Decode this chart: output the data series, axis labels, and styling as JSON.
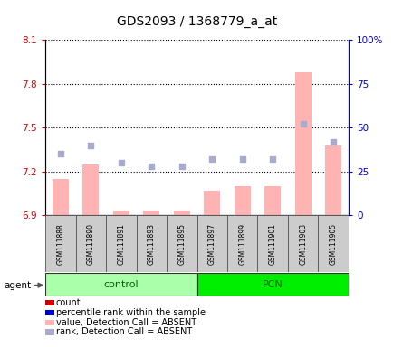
{
  "title": "GDS2093 / 1368779_a_at",
  "samples": [
    "GSM111888",
    "GSM111890",
    "GSM111891",
    "GSM111893",
    "GSM111895",
    "GSM111897",
    "GSM111899",
    "GSM111901",
    "GSM111903",
    "GSM111905"
  ],
  "left_ylim": [
    6.9,
    8.1
  ],
  "right_ylim": [
    0,
    100
  ],
  "left_yticks": [
    6.9,
    7.2,
    7.5,
    7.8,
    8.1
  ],
  "right_yticks": [
    0,
    25,
    50,
    75,
    100
  ],
  "left_ytick_labels": [
    "6.9",
    "7.2",
    "7.5",
    "7.8",
    "8.1"
  ],
  "right_ytick_labels": [
    "0",
    "25",
    "50",
    "75",
    "100%"
  ],
  "bar_values": [
    7.15,
    7.25,
    6.93,
    6.93,
    6.93,
    7.07,
    7.1,
    7.1,
    7.88,
    7.38
  ],
  "rank_values": [
    35,
    40,
    30,
    28,
    28,
    32,
    32,
    32,
    52,
    42
  ],
  "bar_color_absent": "#ffb3b3",
  "rank_color_absent": "#aaaacc",
  "dotted_line_color": "#000000",
  "left_axis_color": "#cc0000",
  "right_axis_color": "#0000cc",
  "sample_box_color": "#cccccc",
  "control_color": "#aaffaa",
  "pcn_color": "#00ee00",
  "group_text_color": "#006600",
  "legend_items": [
    {
      "label": "count",
      "color": "#cc0000"
    },
    {
      "label": "percentile rank within the sample",
      "color": "#0000cc"
    },
    {
      "label": "value, Detection Call = ABSENT",
      "color": "#ffb3b3"
    },
    {
      "label": "rank, Detection Call = ABSENT",
      "color": "#aaaacc"
    }
  ]
}
